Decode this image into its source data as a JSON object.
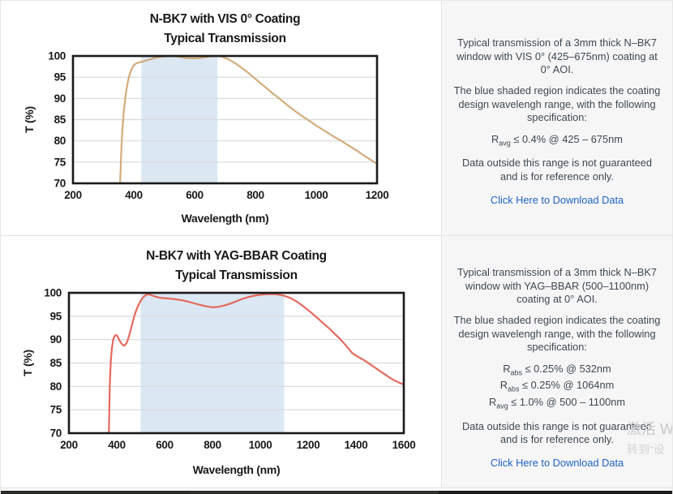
{
  "panels": [
    {
      "paragraph1": "Typical transmission of a 3mm thick N–BK7 window with VIS 0° (425–675nm) coating at 0° AOI.",
      "paragraph2": "The blue shaded region indicates the coating design wavelengh range, with the following specification:",
      "specs": [
        {
          "r": "R",
          "sub": "avg",
          "rest": " ≤ 0.4% @ 425 – 675nm"
        }
      ],
      "paragraph3": "Data outside this range is not guaranteed and is for reference only.",
      "link": "Click Here to Download Data"
    },
    {
      "paragraph1": "Typical transmission of a 3mm thick N–BK7 window with YAG–BBAR (500–1100nm) coating at 0° AOI.",
      "paragraph2": "The blue shaded region indicates the coating design wavelengh range, with the following specification:",
      "specs": [
        {
          "r": "R",
          "sub": "abs",
          "rest": " ≤ 0.25% @ 532nm"
        },
        {
          "r": "R",
          "sub": "abs",
          "rest": " ≤ 0.25% @ 1064nm"
        },
        {
          "r": "R",
          "sub": "avg",
          "rest": " ≤ 1.0% @ 500 – 1100nm"
        }
      ],
      "paragraph3": "Data outside this range is not guaranteed and is for reference only.",
      "link": "Click Here to Download Data"
    }
  ],
  "watermark": {
    "line1": "激活 W",
    "line2": "转到“设"
  },
  "colors": {
    "link_blue": "#1f63c6",
    "panel_text": "#3e4850",
    "axis_black": "#191919",
    "grid_gray": "#d9d9d9"
  },
  "chart_data": [
    {
      "type": "line",
      "title_line1": "N-BK7 with VIS 0° Coating",
      "title_line2": "Typical Transmission",
      "xlabel": "Wavelength (nm)",
      "ylabel": "T (%)",
      "xlim": [
        200,
        1200
      ],
      "ylim": [
        70,
        100
      ],
      "xticks": [
        200,
        400,
        600,
        800,
        1000,
        1200
      ],
      "yticks": [
        70,
        75,
        80,
        85,
        90,
        95,
        100
      ],
      "grid": "horizontal",
      "legend": "none",
      "band_nm": [
        425,
        675
      ],
      "band_color": "#dbe7f3",
      "line_color": "#d3ac7c",
      "series": [
        {
          "name": "Transmission",
          "points": [
            [
              355,
              70
            ],
            [
              356,
              72
            ],
            [
              358,
              76
            ],
            [
              360,
              79.5
            ],
            [
              363,
              83
            ],
            [
              366,
              86
            ],
            [
              370,
              89
            ],
            [
              374,
              91.2
            ],
            [
              378,
              93
            ],
            [
              383,
              94.7
            ],
            [
              388,
              96
            ],
            [
              394,
              97.1
            ],
            [
              400,
              97.8
            ],
            [
              407,
              98.2
            ],
            [
              415,
              98.45
            ],
            [
              425,
              98.6
            ],
            [
              435,
              98.8
            ],
            [
              445,
              99.0
            ],
            [
              455,
              99.25
            ],
            [
              467,
              99.5
            ],
            [
              480,
              99.7
            ],
            [
              495,
              99.85
            ],
            [
              510,
              99.95
            ],
            [
              525,
              100
            ],
            [
              540,
              99.9
            ],
            [
              555,
              99.7
            ],
            [
              570,
              99.55
            ],
            [
              585,
              99.45
            ],
            [
              600,
              99.45
            ],
            [
              615,
              99.5
            ],
            [
              630,
              99.65
            ],
            [
              645,
              99.8
            ],
            [
              660,
              99.95
            ],
            [
              672,
              100
            ],
            [
              685,
              99.9
            ],
            [
              698,
              99.6
            ],
            [
              712,
              99.2
            ],
            [
              726,
              98.6
            ],
            [
              740,
              98.0
            ],
            [
              755,
              97.2
            ],
            [
              770,
              96.4
            ],
            [
              785,
              95.5
            ],
            [
              800,
              94.6
            ],
            [
              815,
              93.7
            ],
            [
              830,
              92.8
            ],
            [
              845,
              91.9
            ],
            [
              860,
              91.0
            ],
            [
              875,
              90.2
            ],
            [
              890,
              89.3
            ],
            [
              905,
              88.4
            ],
            [
              920,
              87.6
            ],
            [
              935,
              86.8
            ],
            [
              950,
              86.0
            ],
            [
              965,
              85.3
            ],
            [
              980,
              84.6
            ],
            [
              1000,
              83.6
            ],
            [
              1020,
              82.7
            ],
            [
              1040,
              81.8
            ],
            [
              1060,
              80.9
            ],
            [
              1080,
              80.1
            ],
            [
              1100,
              79.2
            ],
            [
              1120,
              78.3
            ],
            [
              1140,
              77.4
            ],
            [
              1160,
              76.4
            ],
            [
              1180,
              75.5
            ],
            [
              1200,
              74.6
            ]
          ]
        }
      ]
    },
    {
      "type": "line",
      "title_line1": "N-BK7 with YAG-BBAR Coating",
      "title_line2": "Typical Transmission",
      "xlabel": "Wavelength (nm)",
      "ylabel": "T (%)",
      "xlim": [
        200,
        1600
      ],
      "ylim": [
        70,
        100
      ],
      "xticks": [
        200,
        400,
        600,
        800,
        1000,
        1200,
        1400,
        1600
      ],
      "yticks": [
        70,
        75,
        80,
        85,
        90,
        95,
        100
      ],
      "grid": "horizontal",
      "legend": "none",
      "band_nm": [
        500,
        1100
      ],
      "band_color": "#dbe7f3",
      "line_color": "#e5695d",
      "series": [
        {
          "name": "Transmission",
          "points": [
            [
              367,
              70
            ],
            [
              368,
              73
            ],
            [
              369,
              76
            ],
            [
              371,
              80
            ],
            [
              373,
              83
            ],
            [
              376,
              86
            ],
            [
              380,
              88.3
            ],
            [
              385,
              90.0
            ],
            [
              390,
              90.7
            ],
            [
              396,
              91.0
            ],
            [
              402,
              90.8
            ],
            [
              409,
              90.1
            ],
            [
              416,
              89.4
            ],
            [
              424,
              88.9
            ],
            [
              432,
              88.7
            ],
            [
              440,
              89.2
            ],
            [
              448,
              90.2
            ],
            [
              456,
              91.6
            ],
            [
              464,
              93.2
            ],
            [
              472,
              94.8
            ],
            [
              481,
              96.2
            ],
            [
              490,
              97.3
            ],
            [
              500,
              98.3
            ],
            [
              510,
              99.0
            ],
            [
              520,
              99.5
            ],
            [
              532,
              99.7
            ],
            [
              545,
              99.5
            ],
            [
              560,
              99.2
            ],
            [
              580,
              98.95
            ],
            [
              600,
              98.85
            ],
            [
              625,
              98.75
            ],
            [
              650,
              98.6
            ],
            [
              675,
              98.4
            ],
            [
              700,
              98.1
            ],
            [
              725,
              97.75
            ],
            [
              750,
              97.4
            ],
            [
              775,
              97.1
            ],
            [
              800,
              96.9
            ],
            [
              825,
              97.0
            ],
            [
              850,
              97.3
            ],
            [
              875,
              97.7
            ],
            [
              900,
              98.2
            ],
            [
              925,
              98.7
            ],
            [
              950,
              99.1
            ],
            [
              975,
              99.4
            ],
            [
              1000,
              99.6
            ],
            [
              1030,
              99.7
            ],
            [
              1064,
              99.7
            ],
            [
              1090,
              99.5
            ],
            [
              1110,
              99.2
            ],
            [
              1130,
              98.8
            ],
            [
              1150,
              98.2
            ],
            [
              1170,
              97.5
            ],
            [
              1190,
              96.7
            ],
            [
              1210,
              95.9
            ],
            [
              1230,
              95.0
            ],
            [
              1250,
              94.1
            ],
            [
              1270,
              93.2
            ],
            [
              1290,
              92.3
            ],
            [
              1310,
              91.3
            ],
            [
              1330,
              90.3
            ],
            [
              1350,
              89.2
            ],
            [
              1370,
              88.0
            ],
            [
              1385,
              87.1
            ],
            [
              1400,
              86.6
            ],
            [
              1420,
              86.0
            ],
            [
              1440,
              85.4
            ],
            [
              1460,
              84.7
            ],
            [
              1480,
              84.0
            ],
            [
              1500,
              83.3
            ],
            [
              1520,
              82.6
            ],
            [
              1540,
              81.9
            ],
            [
              1560,
              81.3
            ],
            [
              1580,
              80.8
            ],
            [
              1600,
              80.4
            ]
          ]
        }
      ]
    }
  ]
}
